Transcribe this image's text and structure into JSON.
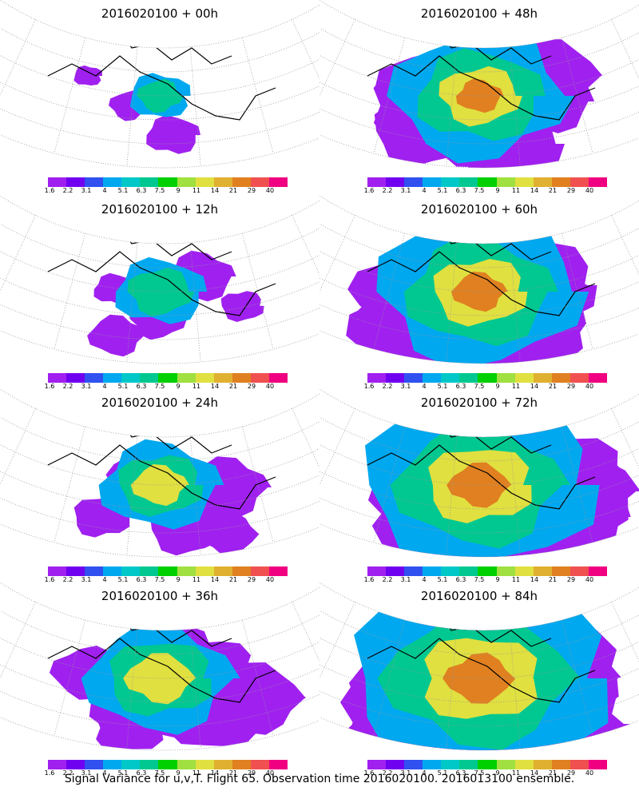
{
  "panels": [
    {
      "title": "2016020100 + 00h",
      "level": 0
    },
    {
      "title": "2016020100 + 48h",
      "level": 4
    },
    {
      "title": "2016020100 + 12h",
      "level": 1
    },
    {
      "title": "2016020100 + 60h",
      "level": 5
    },
    {
      "title": "2016020100 + 24h",
      "level": 2
    },
    {
      "title": "2016020100 + 72h",
      "level": 6
    },
    {
      "title": "2016020100 + 36h",
      "level": 3
    },
    {
      "title": "2016020100 + 84h",
      "level": 7
    }
  ],
  "colorbar": {
    "colors": [
      "#a020f0",
      "#7000f0",
      "#3050f0",
      "#00a8f0",
      "#00c8c8",
      "#00c890",
      "#00d000",
      "#a0e040",
      "#e0e040",
      "#e0b030",
      "#e08020",
      "#f05050",
      "#f00080"
    ],
    "labels": [
      "1.6",
      "2.2",
      "3.1",
      "4",
      "5.1",
      "6.3",
      "7.5",
      "9",
      "11",
      "14",
      "21",
      "29",
      "40"
    ]
  },
  "caption": "Signal Variance for u,v,T. Flight 65. Observation time 2016020100. 2016013100 ensemble."
}
